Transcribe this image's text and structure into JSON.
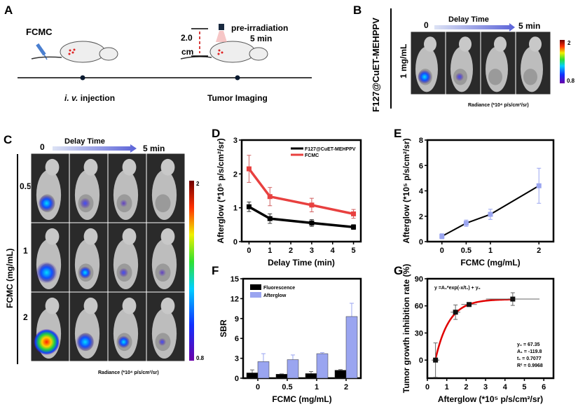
{
  "panel_labels": {
    "a": "A",
    "b": "B",
    "c": "C",
    "d": "D",
    "e": "E",
    "f": "F",
    "g": "G"
  },
  "panel_a": {
    "agent": "FCMC",
    "distance_value": "2.0",
    "distance_unit": "cm",
    "irradiation_line1": "pre-irradiation",
    "irradiation_line2": "5 min",
    "step1_italic": "i. v.",
    "step1_rest": " injection",
    "step2": "Tumor Imaging"
  },
  "panel_b": {
    "group": "F127@CuET-MEHPPV",
    "concentration": "1 mg/mL",
    "time_start": "0",
    "time_label": "Delay Time",
    "time_end": "5 min",
    "colorbar_max": "2",
    "colorbar_min": "0.8",
    "radiance_label": "Radiance (*10⁴ p/s/cm²/sr)",
    "signal_levels": [
      0.9,
      0.5,
      0,
      0
    ]
  },
  "panel_c": {
    "axis_label": "FCMC (mg/mL)",
    "time_start": "0",
    "time_label": "Delay Time",
    "time_end": "5 min",
    "rows": [
      "0.5",
      "1",
      "2"
    ],
    "colorbar_max": "2",
    "colorbar_min": "0.8",
    "radiance_label": "Radiance (*10⁴ p/s/cm²/sr)"
  },
  "colors": {
    "black_series": "#000000",
    "red_series": "#e8403f",
    "blue_series": "#9aa5f0",
    "fit_curve": "#e00000",
    "arrow_gradient": [
      "#dde3f5",
      "#5b63d8"
    ]
  },
  "chart_data": [
    {
      "id": "D",
      "type": "line",
      "x": [
        0,
        1,
        3,
        5
      ],
      "xlabel": "Delay Time (min)",
      "ylabel": "Afterglow (*10⁵ p/s/cm²/sr)",
      "xticks": [
        "0",
        "1",
        "2",
        "3",
        "4",
        "5"
      ],
      "yticks": [
        "0",
        "1",
        "2",
        "3"
      ],
      "xlim": [
        -0.35,
        5.35
      ],
      "ylim": [
        0,
        3
      ],
      "legend": "top-right",
      "series": [
        {
          "name": "F127@CuET-MEHPPV",
          "values": [
            1.03,
            0.68,
            0.55,
            0.43
          ],
          "errors": [
            0.14,
            0.14,
            0.1,
            0.07
          ],
          "color": "#000000"
        },
        {
          "name": "FCMC",
          "values": [
            2.15,
            1.33,
            1.08,
            0.82
          ],
          "errors": [
            0.4,
            0.27,
            0.2,
            0.13
          ],
          "color": "#e8403f"
        }
      ]
    },
    {
      "id": "E",
      "type": "line",
      "x": [
        0,
        0.5,
        1,
        2
      ],
      "values": [
        0.42,
        1.45,
        2.15,
        4.4
      ],
      "errors": [
        0.2,
        0.25,
        0.4,
        1.38
      ],
      "xlabel": "FCMC (mg/mL)",
      "ylabel": "Afterglow (*10⁵ p/s/cm²/sr)",
      "xticks": [
        "0",
        "0.5",
        "1",
        "2"
      ],
      "yticks": [
        "0",
        "2",
        "4",
        "6",
        "8"
      ],
      "xlim": [
        -0.3,
        2.3
      ],
      "ylim": [
        0,
        8
      ]
    },
    {
      "id": "F",
      "type": "bar",
      "categories": [
        "0",
        "0.5",
        "1",
        "2"
      ],
      "xlabel": "FCMC (mg/mL)",
      "ylabel": "SBR",
      "yticks": [
        "0",
        "3",
        "6",
        "9",
        "12",
        "15"
      ],
      "ylim": [
        0,
        15
      ],
      "legend": "top-left",
      "series": [
        {
          "name": "Fluorescence",
          "values": [
            0.8,
            0.6,
            0.7,
            1.2
          ],
          "errors": [
            0.45,
            0.05,
            0.3,
            0.1
          ],
          "color": "#000000"
        },
        {
          "name": "Afterglow",
          "values": [
            2.5,
            2.8,
            3.7,
            9.3
          ],
          "errors": [
            1.2,
            0.7,
            0.15,
            2.0
          ],
          "color": "#9aa5f0"
        }
      ]
    },
    {
      "id": "G",
      "type": "scatter",
      "x": [
        0.42,
        1.45,
        2.15,
        4.4
      ],
      "xerrors": [
        0.2,
        0.25,
        0.4,
        1.38
      ],
      "values": [
        0,
        53,
        61.5,
        67.5
      ],
      "errors": [
        19,
        8,
        1.5,
        7
      ],
      "xlabel": "Afterglow (*10⁵ p/s/cm²/sr)",
      "ylabel": "Tumor growth inhibition rate (%)",
      "xticks": [
        "0",
        "1",
        "2",
        "3",
        "4",
        "5",
        "6"
      ],
      "yticks": [
        "0",
        "30",
        "60",
        "90"
      ],
      "xlim": [
        0,
        6.5
      ],
      "ylim": [
        -20,
        90
      ],
      "fit": {
        "equation": "y =A₁*exp(-x/t₁) + y₀",
        "y0": 67.35,
        "A1": -119.8,
        "t1": 0.7077,
        "labels": [
          "y₀ = 67.35",
          "A₁ = -119.8",
          "t₁ = 0.7077",
          "R² = 0.9968"
        ]
      }
    }
  ]
}
